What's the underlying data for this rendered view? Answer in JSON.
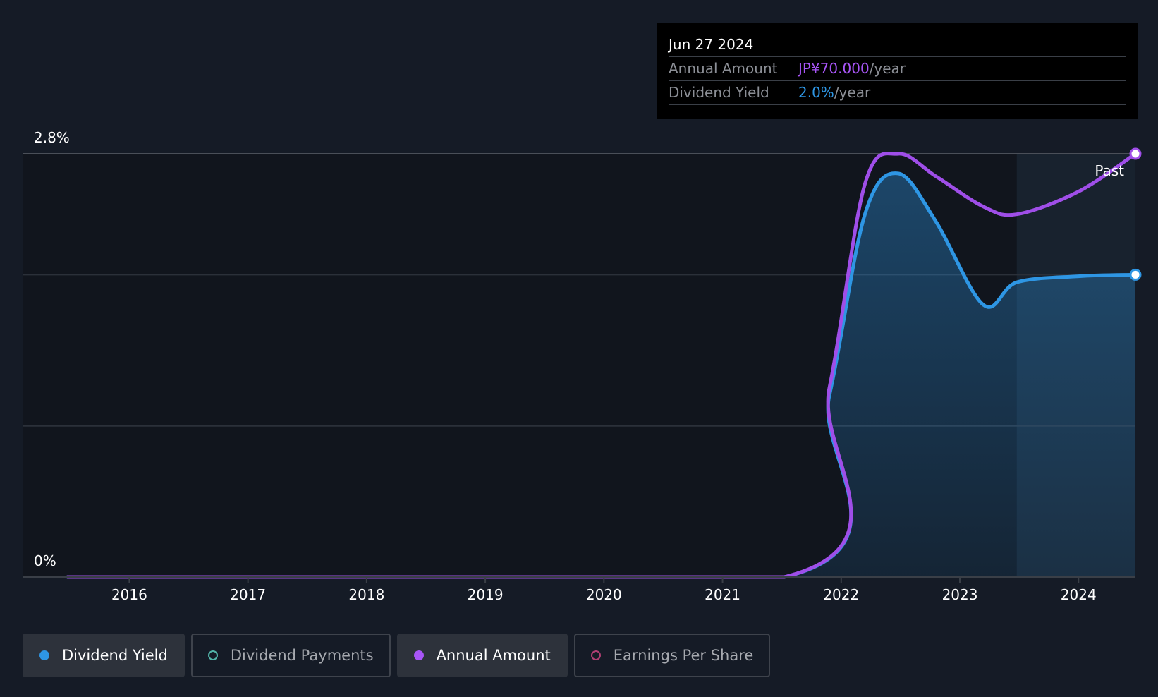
{
  "chart_data": {
    "type": "line",
    "y_axis": {
      "min_label": "0%",
      "max_label": "2.8%",
      "ylim": [
        0,
        2.8
      ]
    },
    "x_ticks": [
      "2016",
      "2017",
      "2018",
      "2019",
      "2020",
      "2021",
      "2022",
      "2023",
      "2024"
    ],
    "xlim": [
      2015.1,
      2024.48
    ],
    "past_label": "Past",
    "forecast_start": 2023.48,
    "series": [
      {
        "name": "Dividend Yield",
        "color": "#2e96e4",
        "x": [
          2015.48,
          2021.52,
          2021.9,
          2022.2,
          2022.48,
          2022.8,
          2023.2,
          2023.48,
          2024.0,
          2024.48
        ],
        "values": [
          0,
          0,
          1.2,
          2.4,
          2.67,
          2.35,
          1.8,
          1.95,
          1.99,
          2.0
        ]
      },
      {
        "name": "Annual Amount",
        "color": "#9f4ee8",
        "x": [
          2015.48,
          2021.52,
          2021.9,
          2022.2,
          2022.48,
          2022.8,
          2023.2,
          2023.48,
          2024.0,
          2024.48
        ],
        "values": [
          0,
          0,
          1.25,
          2.6,
          2.8,
          2.65,
          2.45,
          2.4,
          2.55,
          2.8
        ]
      }
    ]
  },
  "tooltip": {
    "date": "Jun 27 2024",
    "rows": [
      {
        "label": "Annual Amount",
        "value": "JP¥70.000",
        "unit": "/year",
        "color": "#a855f7"
      },
      {
        "label": "Dividend Yield",
        "value": "2.0%",
        "unit": "/year",
        "color": "#2e96e4"
      }
    ]
  },
  "legend": [
    {
      "label": "Dividend Yield",
      "color": "#2e96e4",
      "active": true
    },
    {
      "label": "Dividend Payments",
      "color": "#52b3a8",
      "active": false
    },
    {
      "label": "Annual Amount",
      "color": "#a855f7",
      "active": true
    },
    {
      "label": "Earnings Per Share",
      "color": "#b13f73",
      "active": false
    }
  ]
}
